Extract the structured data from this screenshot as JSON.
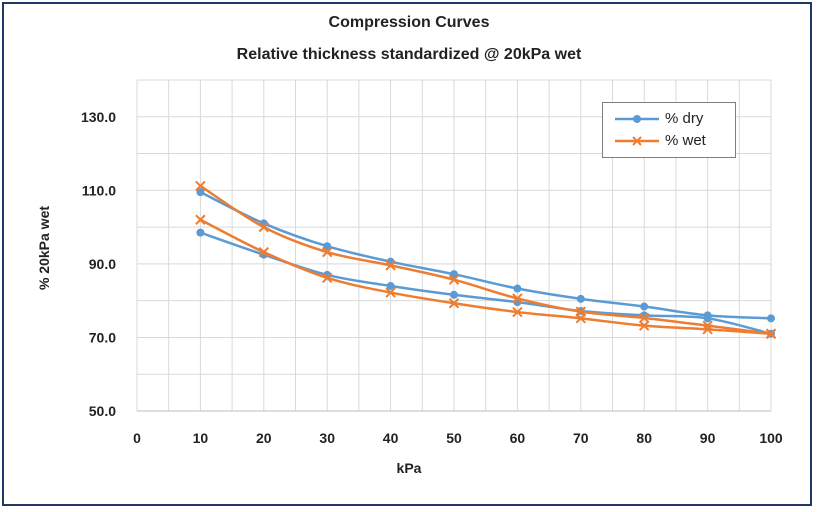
{
  "chart_data": {
    "type": "line",
    "title": "Compression Curves",
    "subtitle": "Relative thickness standardized @ 20kPa wet",
    "xlabel": "kPa",
    "ylabel": "% 20kPa wet",
    "xlim": [
      0,
      100
    ],
    "ylim": [
      50,
      140
    ],
    "x_ticks": [
      "0",
      "10",
      "20",
      "30",
      "40",
      "50",
      "60",
      "70",
      "80",
      "90",
      "100"
    ],
    "y_ticks": [
      "50.0",
      "70.0",
      "90.0",
      "110.0",
      "130.0"
    ],
    "grid": true,
    "legend_position": "top-right",
    "series": [
      {
        "name": "% dry",
        "color": "#5b9bd5",
        "marker": "circle",
        "x": [
          10,
          20,
          30,
          40,
          50,
          60,
          70,
          80,
          90,
          100
        ],
        "values": [
          109.5,
          101.0,
          94.8,
          90.6,
          87.2,
          83.3,
          80.5,
          78.4,
          76.0,
          75.2
        ]
      },
      {
        "name": "% dry",
        "color": "#5b9bd5",
        "marker": "circle",
        "legend": false,
        "x": [
          10,
          20,
          30,
          40,
          50,
          60,
          70,
          80,
          90,
          100
        ],
        "values": [
          98.5,
          92.5,
          87.0,
          84.0,
          81.6,
          79.6,
          77.2,
          76.0,
          75.2,
          71.0
        ]
      },
      {
        "name": "% wet",
        "color": "#ed7d31",
        "marker": "x",
        "x": [
          10,
          20,
          30,
          40,
          50,
          60,
          70,
          80,
          90,
          100
        ],
        "values": [
          111.2,
          100.0,
          93.2,
          89.6,
          85.7,
          80.6,
          77.0,
          75.3,
          73.2,
          71.0
        ]
      },
      {
        "name": "% wet",
        "color": "#ed7d31",
        "marker": "x",
        "legend": false,
        "x": [
          10,
          20,
          30,
          40,
          50,
          60,
          70,
          80,
          90,
          100
        ],
        "values": [
          102.0,
          93.2,
          86.2,
          82.2,
          79.3,
          76.9,
          75.2,
          73.2,
          72.2,
          71.0
        ]
      }
    ]
  }
}
